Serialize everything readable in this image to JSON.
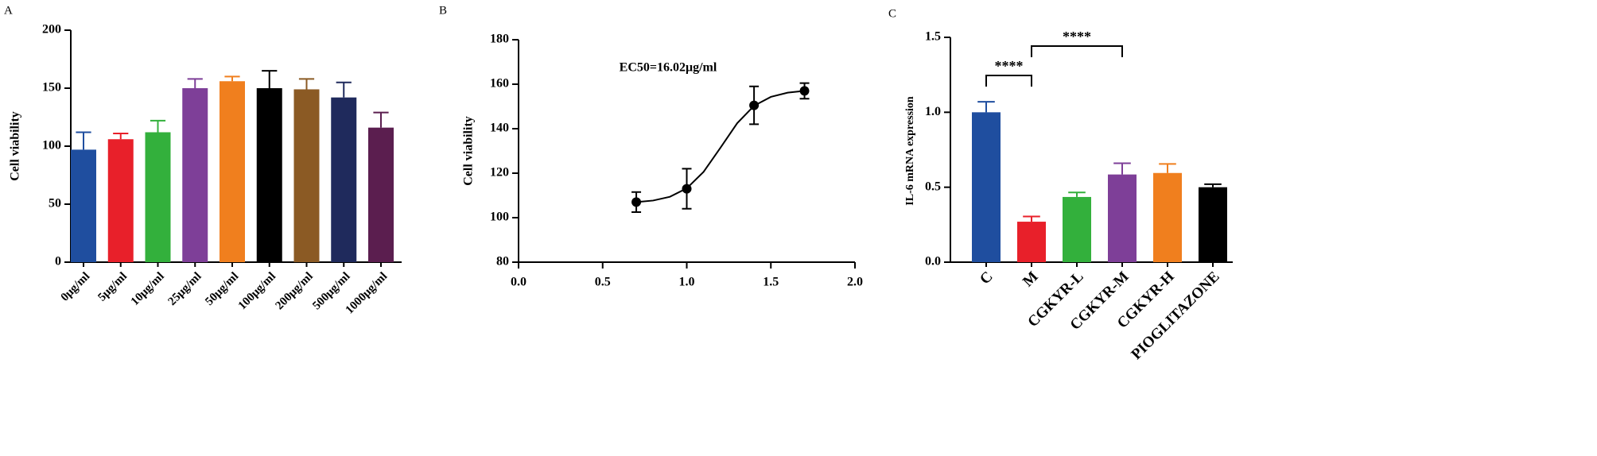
{
  "chart_data": [
    {
      "type": "bar",
      "panel_label": "A",
      "y_label": "Cell viability",
      "categories": [
        "0μg/ml",
        "5μg/ml",
        "10μg/ml",
        "25μg/ml",
        "50μg/ml",
        "100μg/ml",
        "200μg/ml",
        "500μg/ml",
        "1000μg/ml"
      ],
      "values": [
        97,
        106,
        112,
        150,
        156,
        150,
        149,
        142,
        116
      ],
      "errors": [
        15,
        5,
        10,
        8,
        4,
        15,
        9,
        13,
        13
      ],
      "colors": [
        "#1f4e9f",
        "#e8202a",
        "#33b03c",
        "#7e3f98",
        "#f07f1e",
        "#000000",
        "#8b5a24",
        "#1f2a5c",
        "#5b1e4f"
      ],
      "ylim": [
        0,
        200
      ],
      "yticks": [
        0,
        50,
        100,
        150,
        200
      ]
    },
    {
      "type": "scatter",
      "panel_label": "B",
      "y_label": "Cell viability",
      "annotation": "EC50=16.02μg/ml",
      "x": [
        0.7,
        1.0,
        1.4,
        1.7
      ],
      "values": [
        107,
        113,
        150.5,
        157
      ],
      "errors": [
        4.5,
        9,
        8.5,
        3.5
      ],
      "color": "#000000",
      "curve": {
        "x": [
          0.7,
          0.8,
          0.9,
          1.0,
          1.1,
          1.2,
          1.3,
          1.4,
          1.5,
          1.6,
          1.7
        ],
        "y": [
          107.0,
          107.7,
          109.4,
          113.2,
          120.6,
          131.4,
          142.5,
          150.3,
          154.3,
          156.2,
          157.0
        ]
      },
      "xlim": [
        0,
        2
      ],
      "xticks": [
        {
          "value": 0,
          "label": "0.0"
        },
        0.5,
        {
          "value": 1,
          "label": "1.0"
        },
        1.5,
        {
          "value": 2,
          "label": "2.0"
        }
      ],
      "ylim": [
        80,
        180
      ],
      "yticks": [
        80,
        100,
        120,
        140,
        160,
        180
      ]
    },
    {
      "type": "bar",
      "panel_label": "C",
      "y_label": "IL-6 mRNA expression",
      "categories": [
        "C",
        "M",
        "CGKYR-L",
        "CGKYR-M",
        "CGKYR-H",
        "PIOGLITAZONE"
      ],
      "values": [
        1.0,
        0.27,
        0.435,
        0.585,
        0.595,
        0.5
      ],
      "errors": [
        0.07,
        0.035,
        0.03,
        0.075,
        0.06,
        0.02
      ],
      "colors": [
        "#1f4e9f",
        "#e8202a",
        "#33b03c",
        "#7e3f98",
        "#f07f1e",
        "#000000"
      ],
      "ylim": [
        0,
        1.5
      ],
      "yticks": [
        {
          "value": 0,
          "label": "0.0"
        },
        0.5,
        {
          "value": 1,
          "label": "1.0"
        },
        1.5
      ],
      "significance": [
        {
          "text": "****",
          "between": [
            "C",
            "M"
          ]
        },
        {
          "text": "****",
          "between": [
            "M",
            "CGKYR-M"
          ]
        }
      ]
    }
  ]
}
